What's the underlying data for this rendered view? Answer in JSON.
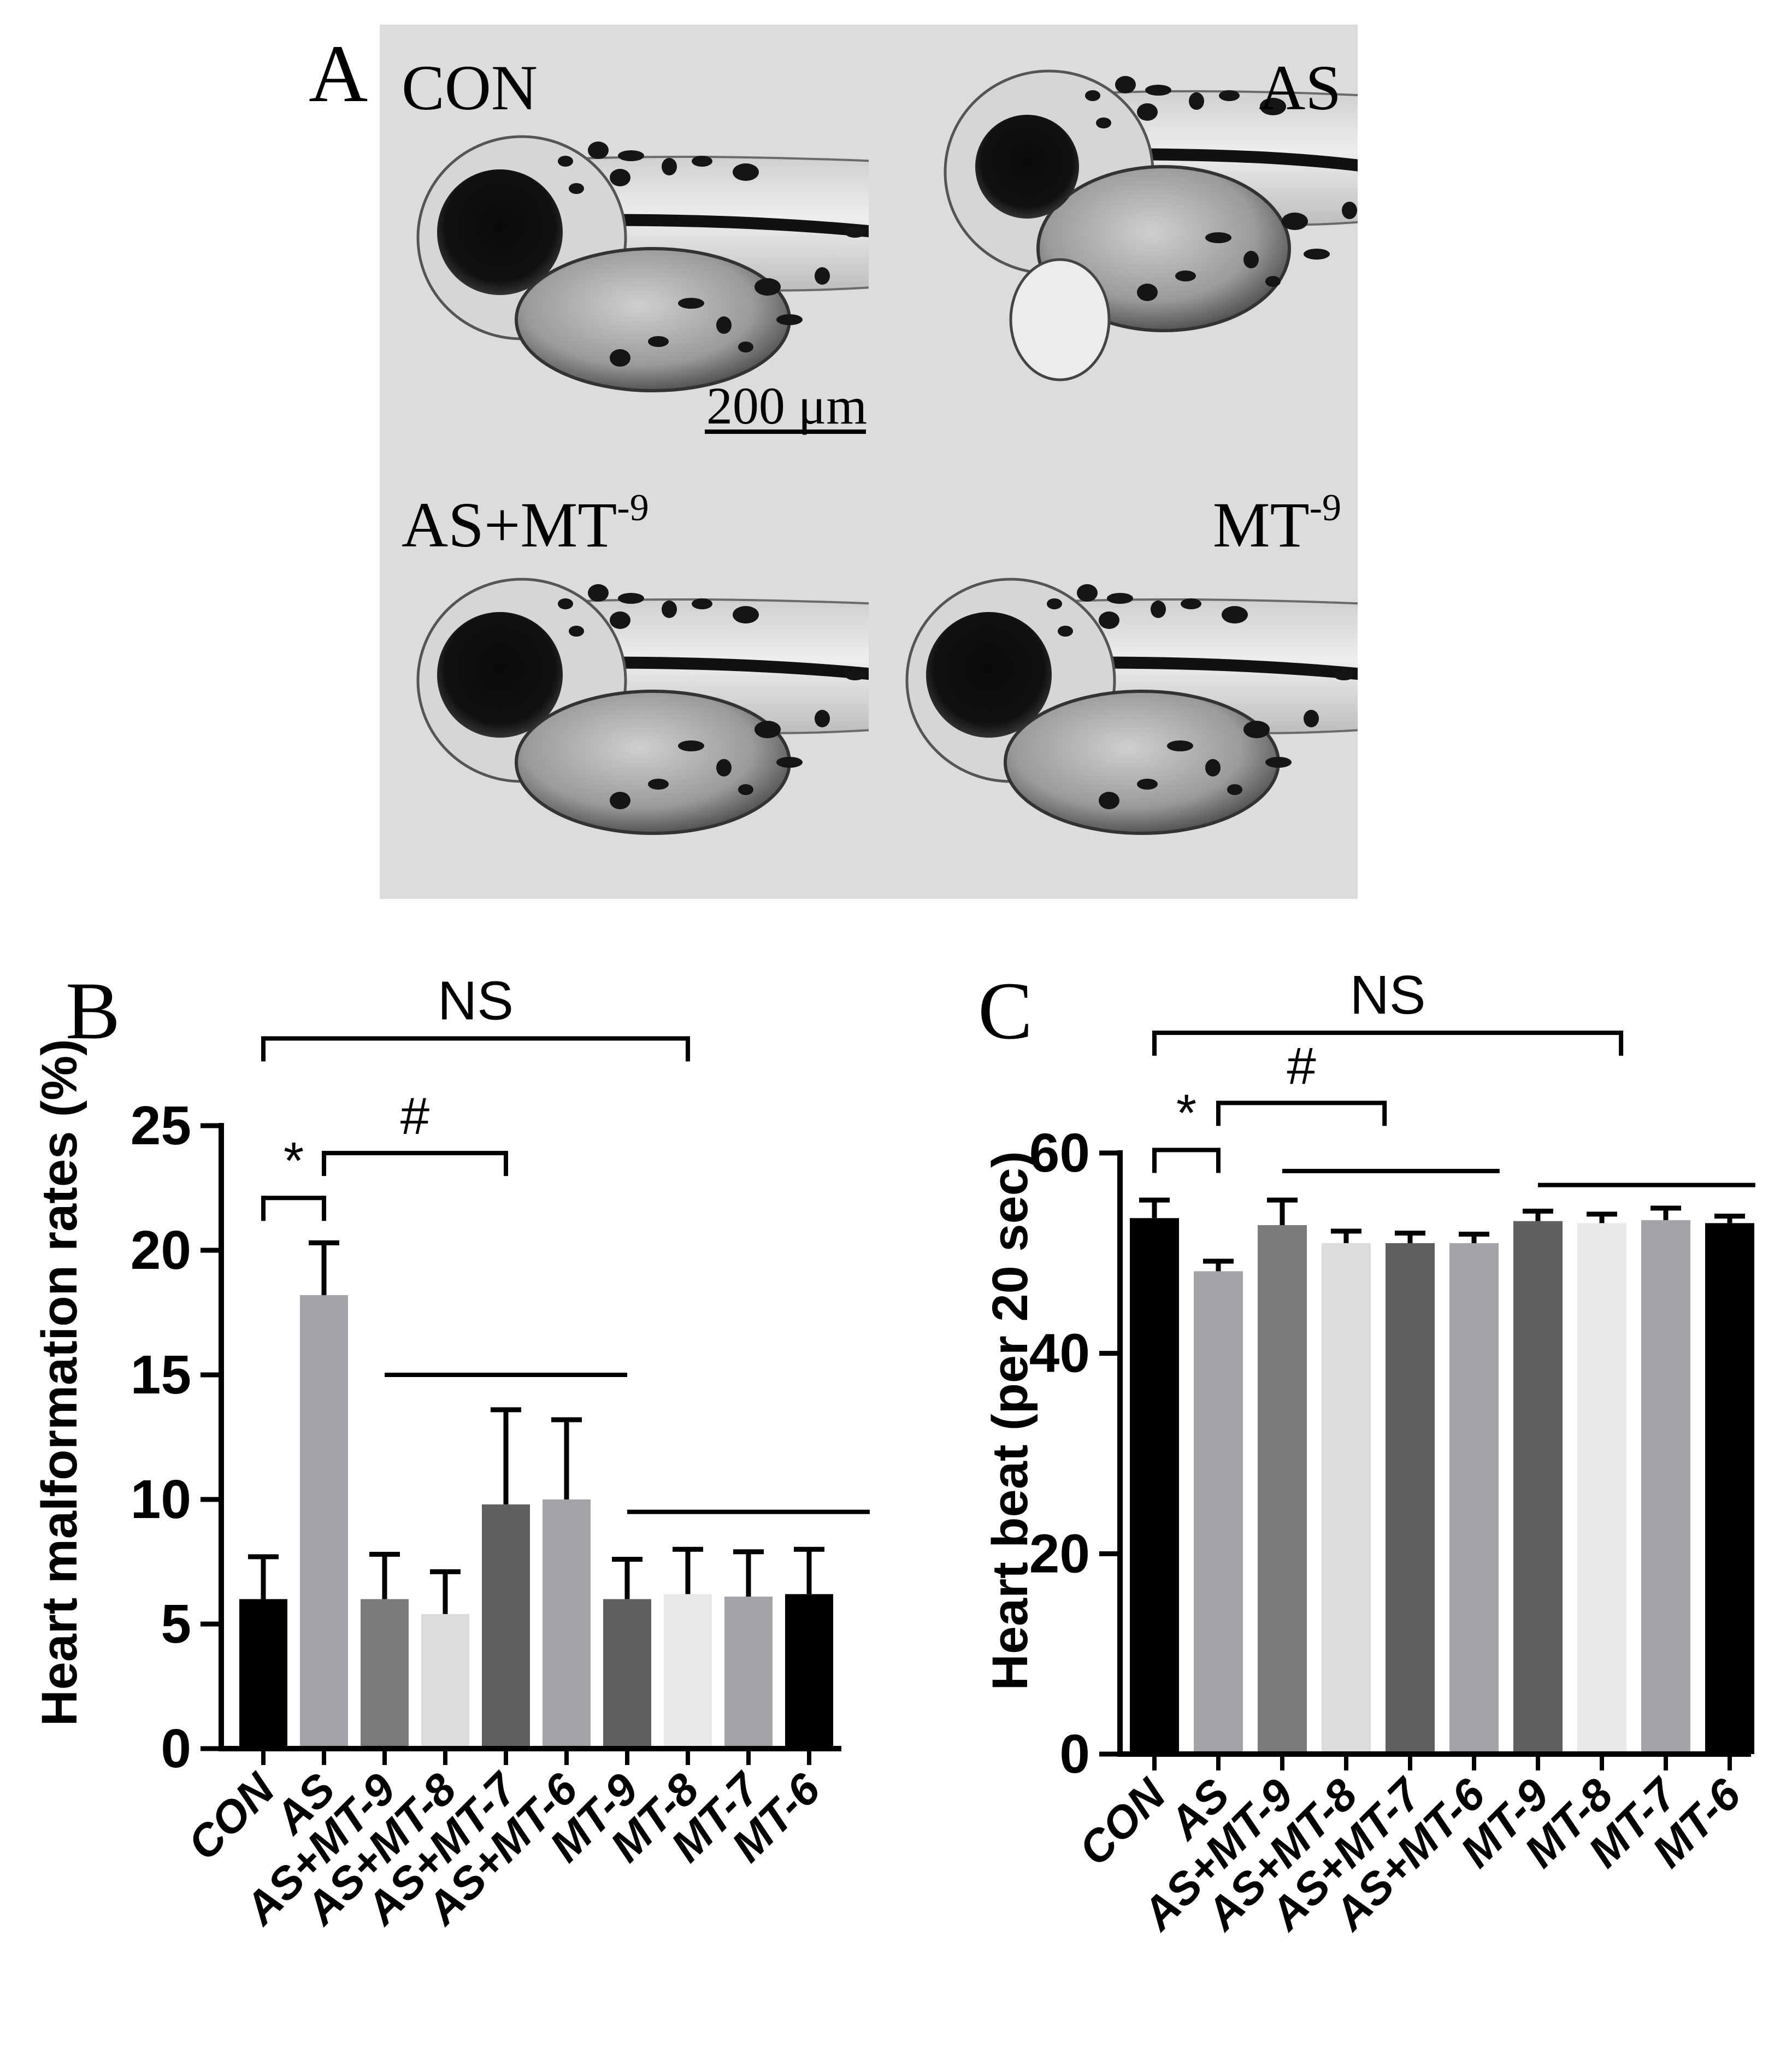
{
  "panel_a": {
    "letter": "A",
    "scale_bar_label": "200 μm",
    "images": [
      {
        "label": "CON"
      },
      {
        "label": "AS"
      },
      {
        "label": "AS+MT",
        "sup": "-9"
      },
      {
        "label": "MT",
        "sup": "-9"
      }
    ]
  },
  "chart_data": [
    {
      "panel": "B",
      "type": "bar",
      "title": "",
      "xlabel": "",
      "ylabel": "Heart malformation rates (%)",
      "ylim": [
        0,
        25
      ],
      "yticks": [
        0,
        5,
        10,
        15,
        20,
        25
      ],
      "categories": [
        "CON",
        "AS",
        "AS+MT-9",
        "AS+MT-8",
        "AS+MT-7",
        "AS+MT-6",
        "MT-9",
        "MT-8",
        "MT-7",
        "MT-6"
      ],
      "values": [
        6.0,
        18.2,
        6.0,
        5.4,
        9.8,
        10.0,
        6.0,
        6.2,
        6.1,
        6.2
      ],
      "errors": [
        1.7,
        2.1,
        1.8,
        1.7,
        3.8,
        3.2,
        1.6,
        1.8,
        1.8,
        1.8
      ],
      "colors": [
        "#000000",
        "#a3a3a8",
        "#7b7b7b",
        "#dcdcdc",
        "#5f5f5f",
        "#a3a3a8",
        "#5f5f5f",
        "#e8e8e8",
        "#a3a3a8",
        "#000000"
      ],
      "annotations": [
        {
          "text": "NS",
          "from": 0,
          "to": 7,
          "level": 28.5,
          "bracket": true
        },
        {
          "text": "#",
          "from": 1,
          "to": 4,
          "level": 23.9,
          "bracket": true
        },
        {
          "text": "*",
          "from": 0,
          "to": 1,
          "level": 22.1,
          "bracket": true
        },
        {
          "text": "",
          "from": 2,
          "to": 6,
          "level": 15.0,
          "bracket": false
        },
        {
          "text": "",
          "from": 6,
          "to": 10,
          "level": 9.5,
          "bracket": false
        }
      ]
    },
    {
      "panel": "C",
      "type": "bar",
      "title": "",
      "xlabel": "",
      "ylabel": "Heart beat (per 20 sec)",
      "ylim": [
        0,
        60
      ],
      "yticks": [
        0,
        20,
        40,
        60
      ],
      "categories": [
        "CON",
        "AS",
        "AS+MT-9",
        "AS+MT-8",
        "AS+MT-7",
        "AS+MT-6",
        "MT-9",
        "MT-8",
        "MT-7",
        "MT-6"
      ],
      "values": [
        53.5,
        48.2,
        52.8,
        51.0,
        51.0,
        51.0,
        53.2,
        53.0,
        53.3,
        53.0
      ],
      "errors": [
        1.8,
        1.0,
        2.5,
        1.2,
        1.0,
        0.9,
        1.0,
        0.9,
        1.2,
        0.7
      ],
      "colors": [
        "#000000",
        "#a3a3a8",
        "#7b7b7b",
        "#dcdcdc",
        "#5f5f5f",
        "#a3a3a8",
        "#5f5f5f",
        "#e8e8e8",
        "#a3a3a8",
        "#000000"
      ],
      "annotations": [
        {
          "text": "NS",
          "from": 0,
          "to": 7.3,
          "level": 72.0,
          "bracket": true
        },
        {
          "text": "#",
          "from": 1,
          "to": 3.6,
          "level": 65.0,
          "bracket": true
        },
        {
          "text": "*",
          "from": 0,
          "to": 1,
          "level": 60.3,
          "bracket": true
        },
        {
          "text": "",
          "from": 2,
          "to": 5.4,
          "level": 58.2,
          "bracket": false
        },
        {
          "text": "",
          "from": 6,
          "to": 9.4,
          "level": 56.8,
          "bracket": false
        }
      ]
    }
  ]
}
